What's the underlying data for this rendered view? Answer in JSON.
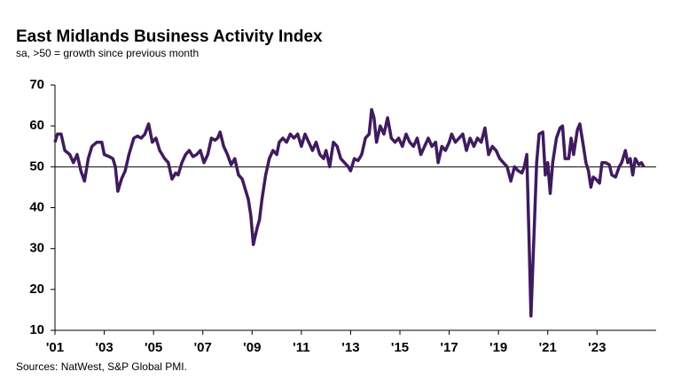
{
  "chart_data": {
    "type": "line",
    "title": "East Midlands Business Activity Index",
    "subtitle": "sa, >50 = growth  since previous month",
    "source": "Sources: NatWest, S&P Global PMI.",
    "color": "#3f1b5e",
    "reference_line": 50,
    "xlim": [
      2001,
      2025.4
    ],
    "ylim": [
      10,
      70
    ],
    "yticks": [
      10,
      20,
      30,
      40,
      50,
      60,
      70
    ],
    "xticks": [
      {
        "value": 2001,
        "label": "'01"
      },
      {
        "value": 2003,
        "label": "'03"
      },
      {
        "value": 2005,
        "label": "'05"
      },
      {
        "value": 2007,
        "label": "'07"
      },
      {
        "value": 2009,
        "label": "'09"
      },
      {
        "value": 2011,
        "label": "'11"
      },
      {
        "value": 2013,
        "label": "'13"
      },
      {
        "value": 2015,
        "label": "'15"
      },
      {
        "value": 2017,
        "label": "'17"
      },
      {
        "value": 2019,
        "label": "'19"
      },
      {
        "value": 2021,
        "label": "'21"
      },
      {
        "value": 2023,
        "label": "'23"
      }
    ],
    "x": [
      2001.0,
      2001.1,
      2001.25,
      2001.4,
      2001.6,
      2001.75,
      2001.9,
      2002.05,
      2002.2,
      2002.35,
      2002.5,
      2002.7,
      2002.9,
      2003.0,
      2003.2,
      2003.35,
      2003.45,
      2003.55,
      2003.7,
      2003.85,
      2004.0,
      2004.2,
      2004.35,
      2004.5,
      2004.65,
      2004.8,
      2004.95,
      2005.1,
      2005.25,
      2005.45,
      2005.6,
      2005.75,
      2005.9,
      2006.0,
      2006.15,
      2006.3,
      2006.45,
      2006.6,
      2006.75,
      2006.9,
      2007.05,
      2007.2,
      2007.35,
      2007.5,
      2007.6,
      2007.7,
      2007.85,
      2008.0,
      2008.15,
      2008.3,
      2008.45,
      2008.6,
      2008.75,
      2008.85,
      2008.95,
      2009.05,
      2009.2,
      2009.3,
      2009.4,
      2009.55,
      2009.7,
      2009.85,
      2010.0,
      2010.1,
      2010.25,
      2010.4,
      2010.55,
      2010.7,
      2010.85,
      2011.0,
      2011.15,
      2011.3,
      2011.45,
      2011.6,
      2011.75,
      2011.9,
      2012.0,
      2012.15,
      2012.3,
      2012.45,
      2012.6,
      2012.75,
      2012.9,
      2013.0,
      2013.15,
      2013.3,
      2013.45,
      2013.6,
      2013.75,
      2013.85,
      2013.95,
      2014.05,
      2014.2,
      2014.35,
      2014.5,
      2014.65,
      2014.8,
      2014.95,
      2015.1,
      2015.25,
      2015.4,
      2015.55,
      2015.7,
      2015.85,
      2016.0,
      2016.15,
      2016.3,
      2016.45,
      2016.55,
      2016.7,
      2016.85,
      2017.0,
      2017.1,
      2017.25,
      2017.4,
      2017.55,
      2017.7,
      2017.85,
      2018.0,
      2018.15,
      2018.3,
      2018.45,
      2018.6,
      2018.75,
      2018.9,
      2019.05,
      2019.2,
      2019.35,
      2019.5,
      2019.65,
      2019.8,
      2019.95,
      2020.05,
      2020.15,
      2020.25,
      2020.32,
      2020.45,
      2020.55,
      2020.65,
      2020.8,
      2020.9,
      2021.0,
      2021.1,
      2021.2,
      2021.35,
      2021.5,
      2021.6,
      2021.7,
      2021.85,
      2021.95,
      2022.05,
      2022.2,
      2022.3,
      2022.45,
      2022.55,
      2022.65,
      2022.75,
      2022.85,
      2022.95,
      2023.1,
      2023.2,
      2023.35,
      2023.5,
      2023.6,
      2023.75,
      2023.9,
      2024.0,
      2024.15,
      2024.25,
      2024.35,
      2024.45,
      2024.55,
      2024.7,
      2024.8,
      2024.9
    ],
    "values": [
      56,
      58,
      58,
      54,
      53,
      51,
      53,
      49,
      46.5,
      52,
      55,
      56,
      56,
      53,
      52.5,
      52,
      50,
      44,
      47,
      49,
      53,
      57,
      57.5,
      57,
      58,
      60.5,
      56,
      57,
      54,
      52,
      51,
      47,
      48.5,
      48,
      51,
      53,
      54,
      52.5,
      53,
      54,
      51,
      53,
      57,
      56.5,
      57,
      58.5,
      55,
      53,
      50.5,
      52,
      48,
      47,
      44,
      42,
      38,
      31,
      35,
      37,
      42,
      48,
      52,
      54,
      53,
      56,
      57,
      56,
      58,
      57,
      58,
      55,
      58,
      56,
      54,
      56,
      53,
      52,
      54,
      50,
      56,
      55,
      52,
      51,
      50,
      49,
      52,
      51.5,
      53,
      57,
      58,
      64,
      62,
      56,
      60,
      58,
      62,
      57,
      56,
      57,
      55,
      58,
      56,
      55,
      57,
      53,
      55,
      57,
      55,
      56,
      51,
      55,
      54,
      56,
      58,
      56,
      57,
      58,
      54,
      57,
      55,
      57,
      56,
      59.5,
      53,
      55,
      54,
      52,
      51,
      50,
      46.5,
      50,
      49,
      48.5,
      50,
      53,
      30,
      13.5,
      35,
      51,
      58,
      58.5,
      48,
      51,
      43.5,
      51,
      57,
      59.5,
      60,
      52,
      52,
      57,
      53,
      59,
      60.5,
      55,
      51,
      49,
      45,
      47.5,
      47,
      46,
      51,
      51,
      50.5,
      48,
      47.5,
      50,
      51,
      54,
      51,
      52,
      48,
      52,
      50.5,
      51,
      50
    ]
  }
}
